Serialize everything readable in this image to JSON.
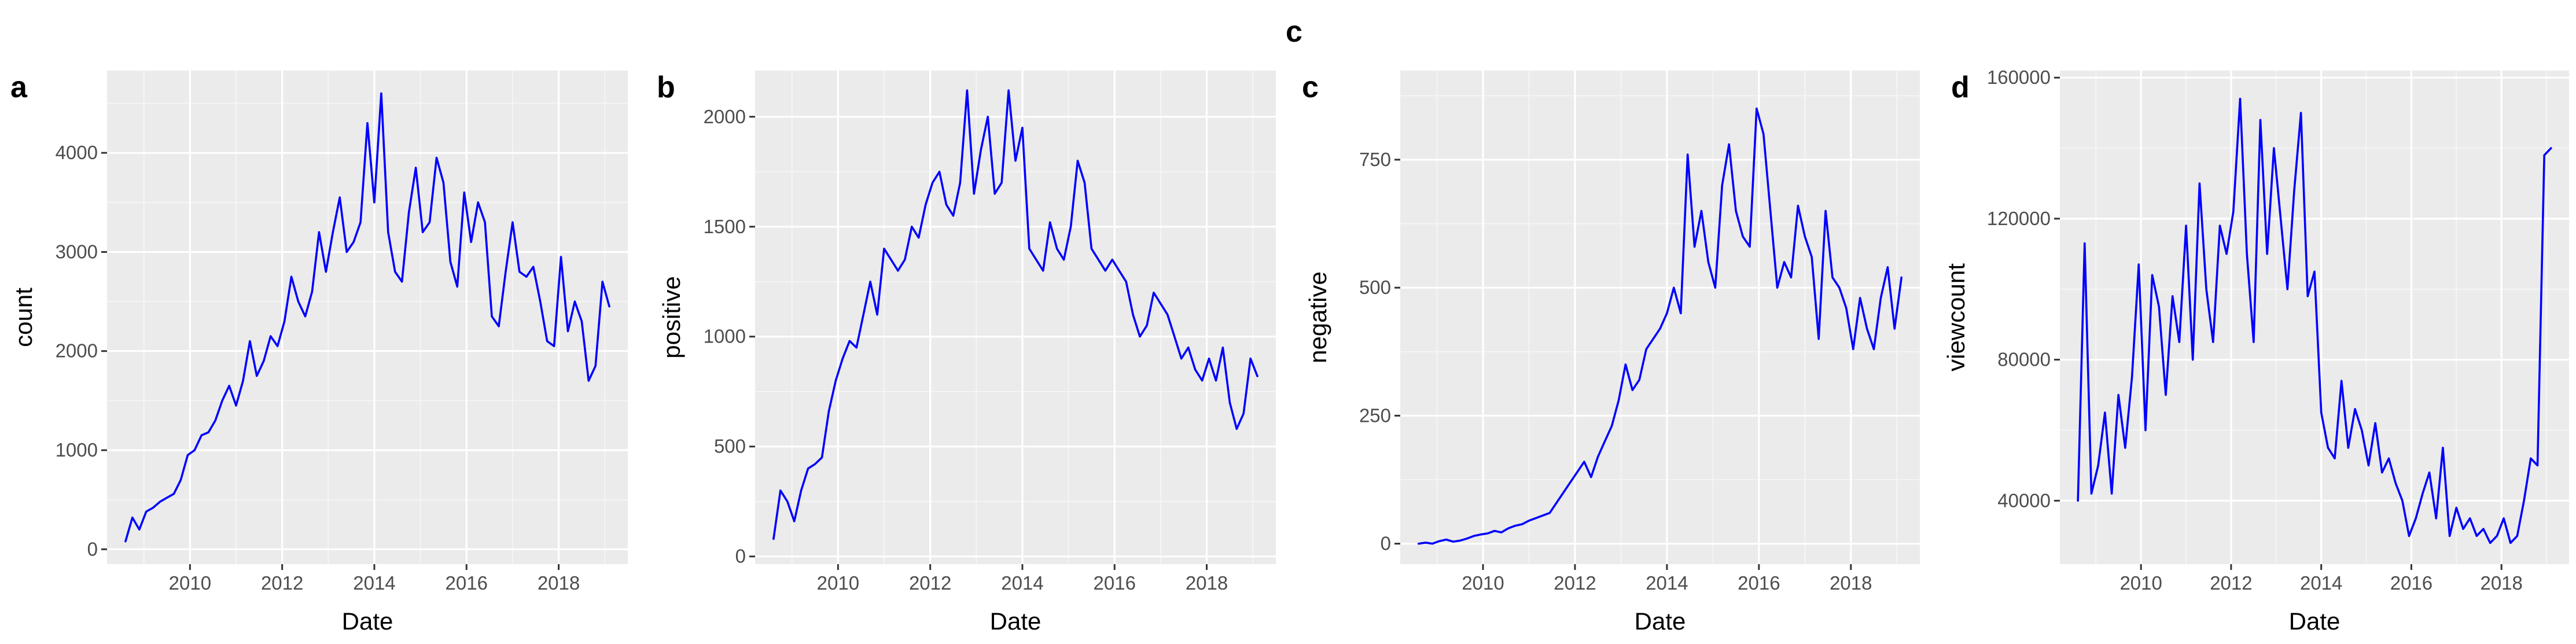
{
  "figure": {
    "top_tag": "c"
  },
  "style": {
    "line_color": "#0000ff",
    "panel_background": "#ebebeb",
    "grid_color": "#ffffff"
  },
  "chart_data": [
    {
      "type": "line",
      "tag": "a",
      "xlabel": "Date",
      "ylabel": "count",
      "xticks": [
        2010,
        2012,
        2014,
        2016,
        2018
      ],
      "yticks": [
        0,
        1000,
        2000,
        3000,
        4000
      ],
      "xlim": [
        2008.2,
        2019.5
      ],
      "ylim": [
        -150,
        4830
      ],
      "grid": true,
      "series": [
        {
          "x": [
            2008.6,
            2008.75,
            2008.9,
            2009.05,
            2009.2,
            2009.35,
            2009.5,
            2009.65,
            2009.8,
            2009.95,
            2010.1,
            2010.25,
            2010.4,
            2010.55,
            2010.7,
            2010.85,
            2011.0,
            2011.15,
            2011.3,
            2011.45,
            2011.6,
            2011.75,
            2011.9,
            2012.05,
            2012.2,
            2012.35,
            2012.5,
            2012.65,
            2012.8,
            2012.95,
            2013.1,
            2013.25,
            2013.4,
            2013.55,
            2013.7,
            2013.85,
            2014.0,
            2014.15,
            2014.3,
            2014.45,
            2014.6,
            2014.75,
            2014.9,
            2015.05,
            2015.2,
            2015.35,
            2015.5,
            2015.65,
            2015.8,
            2015.95,
            2016.1,
            2016.25,
            2016.4,
            2016.55,
            2016.7,
            2016.85,
            2017.0,
            2017.15,
            2017.3,
            2017.45,
            2017.6,
            2017.75,
            2017.9,
            2018.05,
            2018.2,
            2018.35,
            2018.5,
            2018.65,
            2018.8,
            2018.95,
            2019.1
          ],
          "y": [
            80,
            320,
            200,
            380,
            420,
            480,
            520,
            560,
            700,
            950,
            1000,
            1150,
            1180,
            1300,
            1500,
            1650,
            1450,
            1700,
            2100,
            1750,
            1900,
            2150,
            2050,
            2300,
            2750,
            2500,
            2350,
            2600,
            3200,
            2800,
            3200,
            3550,
            3000,
            3100,
            3300,
            4300,
            3500,
            4600,
            3200,
            2800,
            2700,
            3400,
            3850,
            3200,
            3300,
            3950,
            3700,
            2900,
            2650,
            3600,
            3100,
            3500,
            3300,
            2350,
            2250,
            2800,
            3300,
            2800,
            2750,
            2850,
            2500,
            2100,
            2050,
            2950,
            2200,
            2500,
            2300,
            1700,
            1850,
            2700,
            2450
          ]
        }
      ]
    },
    {
      "type": "line",
      "tag": "b",
      "xlabel": "Date",
      "ylabel": "positive",
      "xticks": [
        2010,
        2012,
        2014,
        2016,
        2018
      ],
      "yticks": [
        0,
        500,
        1000,
        1500,
        2000
      ],
      "xlim": [
        2008.2,
        2019.5
      ],
      "ylim": [
        -35,
        2210
      ],
      "grid": true,
      "series": [
        {
          "x": [
            2008.6,
            2008.75,
            2008.9,
            2009.05,
            2009.2,
            2009.35,
            2009.5,
            2009.65,
            2009.8,
            2009.95,
            2010.1,
            2010.25,
            2010.4,
            2010.55,
            2010.7,
            2010.85,
            2011.0,
            2011.15,
            2011.3,
            2011.45,
            2011.6,
            2011.75,
            2011.9,
            2012.05,
            2012.2,
            2012.35,
            2012.5,
            2012.65,
            2012.8,
            2012.95,
            2013.1,
            2013.25,
            2013.4,
            2013.55,
            2013.7,
            2013.85,
            2014.0,
            2014.15,
            2014.3,
            2014.45,
            2014.6,
            2014.75,
            2014.9,
            2015.05,
            2015.2,
            2015.35,
            2015.5,
            2015.65,
            2015.8,
            2015.95,
            2016.1,
            2016.25,
            2016.4,
            2016.55,
            2016.7,
            2016.85,
            2017.0,
            2017.15,
            2017.3,
            2017.45,
            2017.6,
            2017.75,
            2017.9,
            2018.05,
            2018.2,
            2018.35,
            2018.5,
            2018.65,
            2018.8,
            2018.95,
            2019.1
          ],
          "y": [
            80,
            300,
            250,
            160,
            300,
            400,
            420,
            450,
            660,
            800,
            900,
            980,
            950,
            1100,
            1250,
            1100,
            1400,
            1350,
            1300,
            1350,
            1500,
            1450,
            1600,
            1700,
            1750,
            1600,
            1550,
            1700,
            2120,
            1650,
            1850,
            2000,
            1650,
            1700,
            2120,
            1800,
            1950,
            1400,
            1350,
            1300,
            1520,
            1400,
            1350,
            1500,
            1800,
            1700,
            1400,
            1350,
            1300,
            1350,
            1300,
            1250,
            1100,
            1000,
            1050,
            1200,
            1150,
            1100,
            1000,
            900,
            950,
            850,
            800,
            900,
            800,
            950,
            700,
            580,
            650,
            900,
            820
          ]
        }
      ]
    },
    {
      "type": "line",
      "tag": "c",
      "xlabel": "Date",
      "ylabel": "negative",
      "xticks": [
        2010,
        2012,
        2014,
        2016,
        2018
      ],
      "yticks": [
        0,
        250,
        500,
        750
      ],
      "xlim": [
        2008.2,
        2019.5
      ],
      "ylim": [
        -40,
        924
      ],
      "grid": true,
      "series": [
        {
          "x": [
            2008.6,
            2008.75,
            2008.9,
            2009.05,
            2009.2,
            2009.35,
            2009.5,
            2009.65,
            2009.8,
            2009.95,
            2010.1,
            2010.25,
            2010.4,
            2010.55,
            2010.7,
            2010.85,
            2011.0,
            2011.15,
            2011.3,
            2011.45,
            2011.6,
            2011.75,
            2011.9,
            2012.05,
            2012.2,
            2012.35,
            2012.5,
            2012.65,
            2012.8,
            2012.95,
            2013.1,
            2013.25,
            2013.4,
            2013.55,
            2013.7,
            2013.85,
            2014.0,
            2014.15,
            2014.3,
            2014.45,
            2014.6,
            2014.75,
            2014.9,
            2015.05,
            2015.2,
            2015.35,
            2015.5,
            2015.65,
            2015.8,
            2015.95,
            2016.1,
            2016.25,
            2016.4,
            2016.55,
            2016.7,
            2016.85,
            2017.0,
            2017.15,
            2017.3,
            2017.45,
            2017.6,
            2017.75,
            2017.9,
            2018.05,
            2018.2,
            2018.35,
            2018.5,
            2018.65,
            2018.8,
            2018.95,
            2019.1
          ],
          "y": [
            0,
            2,
            0,
            5,
            8,
            4,
            6,
            10,
            15,
            18,
            20,
            25,
            22,
            30,
            35,
            38,
            45,
            50,
            55,
            60,
            80,
            100,
            120,
            140,
            160,
            130,
            170,
            200,
            230,
            280,
            350,
            300,
            320,
            380,
            400,
            420,
            450,
            500,
            450,
            760,
            580,
            650,
            550,
            500,
            700,
            780,
            650,
            600,
            580,
            850,
            800,
            650,
            500,
            550,
            520,
            660,
            600,
            560,
            400,
            650,
            520,
            500,
            460,
            380,
            480,
            420,
            380,
            480,
            540,
            420,
            520
          ]
        }
      ]
    },
    {
      "type": "line",
      "tag": "d",
      "xlabel": "Date",
      "ylabel": "viewcount",
      "xticks": [
        2010,
        2012,
        2014,
        2016,
        2018
      ],
      "yticks": [
        40000,
        80000,
        120000,
        160000
      ],
      "xlim": [
        2008.2,
        2019.5
      ],
      "ylim": [
        22000,
        162000
      ],
      "grid": true,
      "series": [
        {
          "x": [
            2008.6,
            2008.75,
            2008.9,
            2009.05,
            2009.2,
            2009.35,
            2009.5,
            2009.65,
            2009.8,
            2009.95,
            2010.1,
            2010.25,
            2010.4,
            2010.55,
            2010.7,
            2010.85,
            2011.0,
            2011.15,
            2011.3,
            2011.45,
            2011.6,
            2011.75,
            2011.9,
            2012.05,
            2012.2,
            2012.35,
            2012.5,
            2012.65,
            2012.8,
            2012.95,
            2013.1,
            2013.25,
            2013.4,
            2013.55,
            2013.7,
            2013.85,
            2014.0,
            2014.15,
            2014.3,
            2014.45,
            2014.6,
            2014.75,
            2014.9,
            2015.05,
            2015.2,
            2015.35,
            2015.5,
            2015.65,
            2015.8,
            2015.95,
            2016.1,
            2016.25,
            2016.4,
            2016.55,
            2016.7,
            2016.85,
            2017.0,
            2017.15,
            2017.3,
            2017.45,
            2017.6,
            2017.75,
            2017.9,
            2018.05,
            2018.2,
            2018.35,
            2018.5,
            2018.65,
            2018.8,
            2018.95,
            2019.1
          ],
          "y": [
            40000,
            113000,
            42000,
            50000,
            65000,
            42000,
            70000,
            55000,
            75000,
            107000,
            60000,
            104000,
            95000,
            70000,
            98000,
            85000,
            118000,
            80000,
            130000,
            100000,
            85000,
            118000,
            110000,
            122000,
            154000,
            110000,
            85000,
            148000,
            110000,
            140000,
            120000,
            100000,
            128000,
            150000,
            98000,
            105000,
            65000,
            55000,
            52000,
            74000,
            55000,
            66000,
            60000,
            50000,
            62000,
            48000,
            52000,
            45000,
            40000,
            30000,
            35000,
            42000,
            48000,
            35000,
            55000,
            30000,
            38000,
            32000,
            35000,
            30000,
            32000,
            28000,
            30000,
            35000,
            28000,
            30000,
            40000,
            52000,
            50000,
            138000,
            140000
          ]
        }
      ]
    }
  ]
}
